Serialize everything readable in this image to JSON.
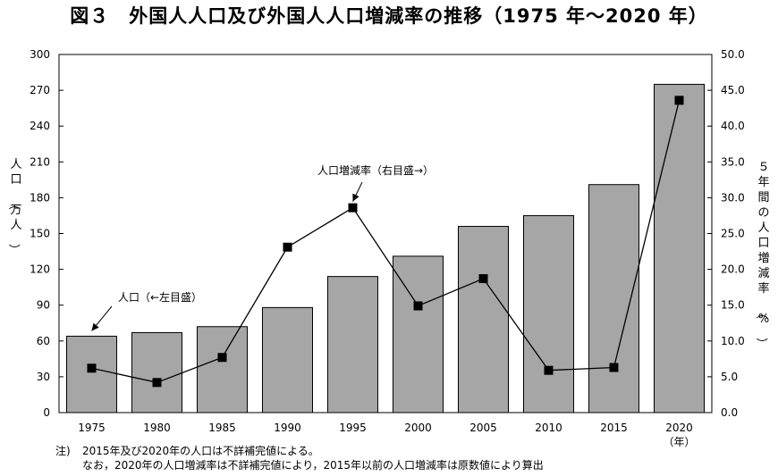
{
  "title": "図３　外国人人口及び外国人人口増減率の推移（1975 年～2020 年）",
  "chart_data": {
    "type": "bar+line",
    "categories": [
      "1975",
      "1980",
      "1985",
      "1990",
      "1995",
      "2000",
      "2005",
      "2010",
      "2015",
      "2020"
    ],
    "series": [
      {
        "name": "人口",
        "type": "bar",
        "axis": "left",
        "values": [
          64,
          67,
          72,
          88,
          114,
          131,
          156,
          165,
          191,
          275
        ]
      },
      {
        "name": "人口増減率",
        "type": "line",
        "axis": "right",
        "values": [
          6.2,
          4.2,
          7.7,
          23.1,
          28.6,
          14.9,
          18.7,
          5.9,
          6.3,
          43.6
        ]
      }
    ],
    "y_left": {
      "label": "人口（万人）",
      "min": 0,
      "max": 300,
      "ticks": [
        "0",
        "30",
        "60",
        "90",
        "120",
        "150",
        "180",
        "210",
        "240",
        "270",
        "300"
      ]
    },
    "y_right": {
      "label": "５年間の人口増減率（%）",
      "min": 0,
      "max": 50,
      "ticks": [
        "0.0",
        "5.0",
        "10.0",
        "15.0",
        "20.0",
        "25.0",
        "30.0",
        "35.0",
        "40.0",
        "45.0",
        "50.0"
      ]
    },
    "x_unit": "（年）",
    "annotations": [
      {
        "text": "人口（←左目盛）",
        "target_series": "人口",
        "target_index": 0
      },
      {
        "text": "人口増減率（右目盛→）",
        "target_series": "人口増減率",
        "target_index": 4
      }
    ],
    "colors": {
      "bar_fill": "#a6a6a6",
      "bar_stroke": "#000000",
      "line": "#000000",
      "marker": "#000000"
    }
  },
  "notes": {
    "prefix": "注)",
    "line1": "2015年及び2020年の人口は不詳補完値による。",
    "line2": "なお，2020年の人口増減率は不詳補完値により，2015年以前の人口増減率は原数値により算出"
  }
}
